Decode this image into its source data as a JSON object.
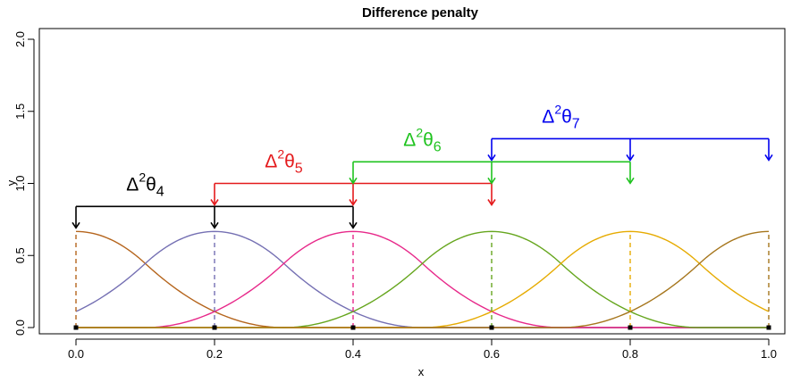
{
  "chart_data": {
    "type": "line",
    "title": "Difference penalty",
    "xlabel": "x",
    "ylabel": "y",
    "xlim": [
      0,
      1
    ],
    "ylim": [
      0,
      2
    ],
    "xticks": [
      0.0,
      0.2,
      0.4,
      0.6,
      0.8,
      1.0
    ],
    "xtick_labels": [
      "0.0",
      "0.2",
      "0.4",
      "0.6",
      "0.8",
      "1.0"
    ],
    "yticks": [
      0.0,
      0.5,
      1.0,
      1.5,
      2.0
    ],
    "ytick_labels": [
      "0.0",
      "0.5",
      "1.0",
      "1.5",
      "2.0"
    ],
    "grid": false,
    "knots": [
      0.0,
      0.2,
      0.4,
      0.6,
      0.8,
      1.0
    ],
    "basis_peak": 0.6667,
    "series": [
      {
        "center": 0.0,
        "color": "#b5651d"
      },
      {
        "center": 0.2,
        "color": "#7570b3"
      },
      {
        "center": 0.4,
        "color": "#e7298a"
      },
      {
        "center": 0.6,
        "color": "#66a61e"
      },
      {
        "center": 0.8,
        "color": "#e6ab02"
      },
      {
        "center": 1.0,
        "color": "#a6761d"
      }
    ],
    "annotations": [
      {
        "delta": "Δ",
        "sup": "2",
        "theta": "θ",
        "sub": "4",
        "color": "#000000",
        "level": 0.84,
        "x": [
          0.0,
          0.2,
          0.4
        ],
        "label_x": 0.1,
        "label_y": 0.95
      },
      {
        "delta": "Δ",
        "sup": "2",
        "theta": "θ",
        "sub": "5",
        "color": "#e41a1c",
        "level": 1.0,
        "x": [
          0.2,
          0.4,
          0.6
        ],
        "label_x": 0.3,
        "label_y": 1.11
      },
      {
        "delta": "Δ",
        "sup": "2",
        "theta": "θ",
        "sub": "6",
        "color": "#1fc31f",
        "level": 1.15,
        "x": [
          0.4,
          0.6,
          0.8
        ],
        "label_x": 0.5,
        "label_y": 1.26
      },
      {
        "delta": "Δ",
        "sup": "2",
        "theta": "θ",
        "sub": "7",
        "color": "#0000ee",
        "level": 1.31,
        "x": [
          0.6,
          0.8,
          1.0
        ],
        "label_x": 0.7,
        "label_y": 1.42
      }
    ]
  }
}
